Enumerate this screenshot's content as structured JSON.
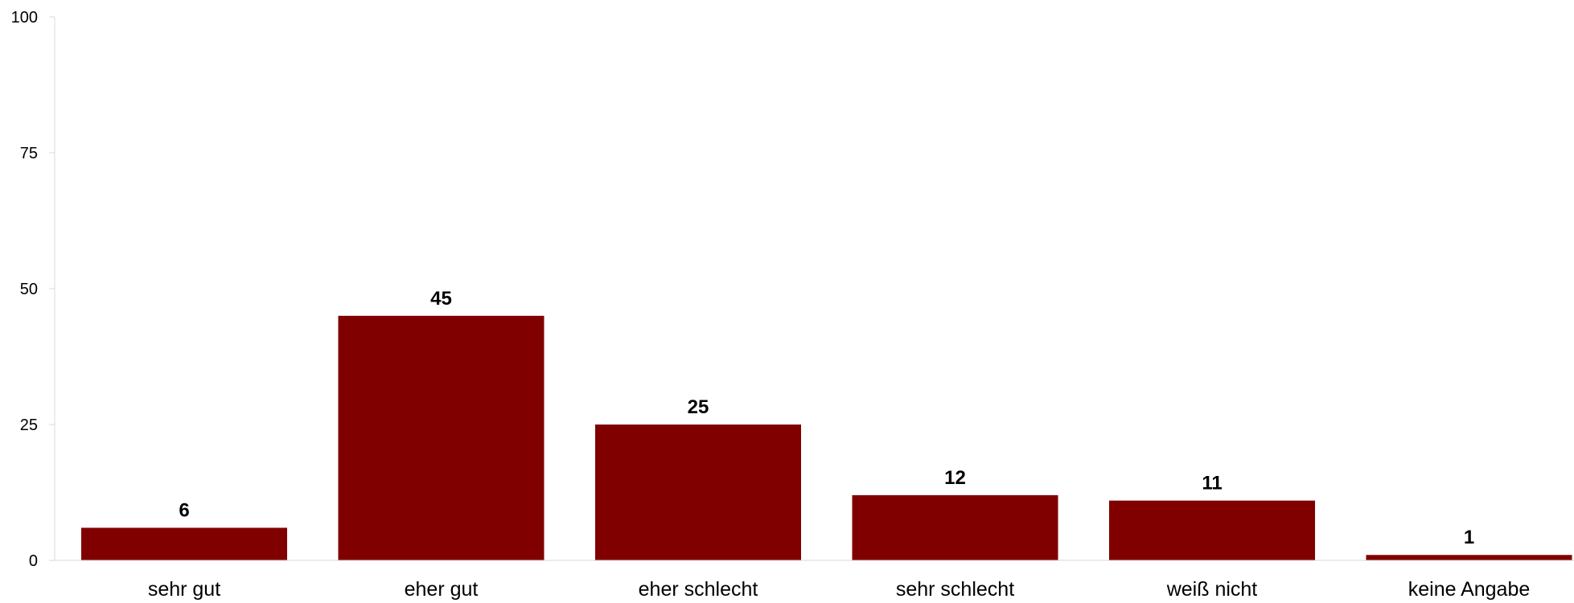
{
  "chart_data": {
    "type": "bar",
    "categories": [
      "sehr gut",
      "eher gut",
      "eher schlecht",
      "sehr schlecht",
      "weiß nicht",
      "keine Angabe"
    ],
    "values": [
      6,
      45,
      25,
      12,
      11,
      1
    ],
    "data_labels": [
      "6",
      "45",
      "25",
      "12",
      "11",
      "1"
    ],
    "title": "",
    "xlabel": "",
    "ylabel": "",
    "ylim": [
      0,
      100
    ],
    "yticks": [
      0,
      25,
      50,
      75,
      100
    ],
    "ytick_labels": [
      "0",
      "25",
      "50",
      "75",
      "100"
    ],
    "grid": false,
    "legend": "none",
    "colors": {
      "bar": "#800000",
      "axis": "#d9d9d9",
      "text": "#000000"
    }
  }
}
